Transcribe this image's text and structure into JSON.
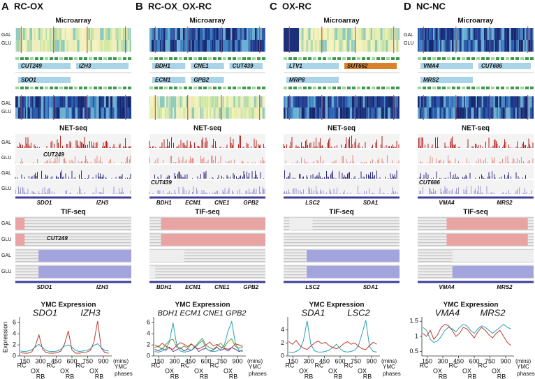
{
  "panels": [
    {
      "letter": "A",
      "title": "RC-OX",
      "microarray_title": "Microarray",
      "microarray_labels": [
        "GAL",
        "GLU",
        "GAL",
        "GLU"
      ],
      "annotation_genes": [
        "CUT249",
        "SDO1",
        "IZH3"
      ],
      "netseq_title": "NET-seq",
      "netseq_labels": [
        "GAL",
        "GLU",
        "GAL",
        "GLU"
      ],
      "netseq_annot": "CUT249",
      "netseq_genes": [
        "SDO1",
        "IZH3"
      ],
      "tifseq_title": "TIF-seq",
      "tifseq_labels": [
        "GAL",
        "GLU",
        "GAL",
        "GLU"
      ],
      "tifseq_annot": "CUT249",
      "tifseq_genes": [
        "SDO1",
        "IZH3"
      ]
    },
    {
      "letter": "B",
      "title": "RC-OX_OX-RC",
      "microarray_title": "Microarray",
      "annotation_genes": [
        "BDH1",
        "ECM1",
        "CNE1",
        "GPB2",
        "CUT439"
      ],
      "netseq_title": "NET-seq",
      "netseq_annot": "CUT439",
      "netseq_genes": [
        "BDH1",
        "ECM1",
        "CNE1",
        "GPB2"
      ],
      "tifseq_title": "TIF-seq",
      "tifseq_genes": [
        "BDH1",
        "ECM1",
        "CNE1",
        "GPB2"
      ]
    },
    {
      "letter": "C",
      "title": "OX-RC",
      "microarray_title": "Microarray",
      "annotation_genes": [
        "LTV1",
        "MRP8",
        "SUT662"
      ],
      "netseq_title": "NET-seq",
      "netseq_genes": [
        "LSC2",
        "SDA1"
      ],
      "tifseq_title": "TIF-seq",
      "tifseq_genes": [
        "LSC2",
        "SDA1"
      ]
    },
    {
      "letter": "D",
      "title": "NC-NC",
      "microarray_title": "Microarray",
      "microarray_labels": [
        "GAL",
        "GLU"
      ],
      "annotation_genes": [
        "VMA4",
        "MRS2",
        "CUT686"
      ],
      "netseq_title": "NET-seq",
      "netseq_annot": "CUT686",
      "netseq_genes": [
        "VMA4",
        "MRS2"
      ],
      "tifseq_title": "TIF-seq",
      "tifseq_genes": [
        "VMA4",
        "MRS2"
      ]
    }
  ],
  "chart_data": [
    {
      "type": "line",
      "title": "YMC Expression",
      "y_label": "Expression",
      "x_unit": "(mins)",
      "x": [
        110,
        145,
        180,
        215,
        250,
        285,
        320,
        355,
        390,
        425,
        460,
        495,
        530,
        565,
        600,
        635,
        670,
        705,
        740,
        775,
        810,
        845,
        880,
        915,
        950
      ],
      "xlim": [
        100,
        980
      ],
      "xticks": [
        150,
        300,
        450,
        600,
        750,
        900
      ],
      "ylim": [
        0,
        6.8
      ],
      "yticks": [
        0,
        2,
        4,
        6
      ],
      "series": [
        {
          "name": "SDO1",
          "color": "#c0392b",
          "values": [
            0.6,
            0.5,
            0.5,
            0.7,
            1.8,
            3.8,
            1.2,
            0.6,
            0.5,
            0.5,
            0.6,
            0.9,
            2.2,
            4.5,
            1.1,
            0.5,
            0.5,
            0.6,
            0.7,
            1.0,
            2.5,
            6.3,
            1.4,
            0.6,
            0.5
          ]
        },
        {
          "name": "IZH3",
          "color": "#2a9fb8",
          "values": [
            0.9,
            0.8,
            0.9,
            1.1,
            1.6,
            2.1,
            1.5,
            1.0,
            0.8,
            0.8,
            0.9,
            1.2,
            1.8,
            2.0,
            1.6,
            1.0,
            0.8,
            0.9,
            1.0,
            1.3,
            1.9,
            2.2,
            1.5,
            1.0,
            0.9
          ]
        }
      ],
      "phases": {
        "x": [
          120,
          250,
          300,
          400,
          530,
          580,
          680,
          810,
          860
        ],
        "labels": [
          "RC",
          "OX",
          "RB",
          "RC",
          "OX",
          "RB",
          "RC",
          "OX",
          "RB"
        ]
      },
      "phase_axis_label": [
        "YMC",
        "phases"
      ]
    },
    {
      "type": "line",
      "title": "YMC Expression",
      "x_unit": "(mins)",
      "x": [
        110,
        145,
        180,
        215,
        250,
        285,
        320,
        355,
        390,
        425,
        460,
        495,
        530,
        565,
        600,
        635,
        670,
        705,
        740,
        775,
        810,
        845,
        880,
        915,
        950
      ],
      "xlim": [
        100,
        980
      ],
      "xticks": [
        150,
        300,
        450,
        600,
        750,
        900
      ],
      "ylim": [
        0,
        6.8
      ],
      "yticks": [
        0,
        2,
        4,
        6
      ],
      "series": [
        {
          "name": "BDH1",
          "color": "#5b3c9e",
          "values": [
            1.2,
            0.9,
            1.4,
            1.0,
            1.6,
            0.8,
            1.1,
            1.5,
            0.9,
            1.3,
            1.0,
            1.7,
            0.8,
            1.2,
            1.4,
            0.9,
            1.1,
            1.6,
            1.0,
            1.3,
            0.9,
            1.5,
            1.2,
            0.8,
            1.1
          ]
        },
        {
          "name": "ECM1",
          "color": "#2a9fb8",
          "values": [
            0.8,
            0.7,
            0.9,
            1.2,
            2.5,
            6.0,
            2.0,
            0.9,
            0.7,
            0.8,
            1.0,
            1.5,
            2.2,
            2.8,
            1.4,
            0.9,
            0.8,
            0.9,
            1.2,
            2.0,
            4.5,
            6.2,
            2.3,
            1.0,
            0.8
          ]
        },
        {
          "name": "CNE1",
          "color": "#5aa02c",
          "values": [
            1.5,
            1.8,
            1.2,
            2.0,
            2.8,
            3.0,
            1.6,
            1.3,
            1.8,
            1.4,
            2.1,
            1.7,
            2.5,
            3.2,
            1.9,
            1.5,
            1.2,
            1.8,
            2.3,
            1.6,
            2.6,
            3.1,
            1.7,
            1.4,
            1.6
          ]
        },
        {
          "name": "GPB2",
          "color": "#c0392b",
          "values": [
            2.0,
            1.6,
            2.3,
            1.8,
            1.4,
            1.2,
            1.9,
            2.4,
            2.1,
            1.7,
            2.2,
            1.5,
            1.3,
            1.6,
            2.0,
            2.5,
            1.8,
            2.1,
            1.6,
            1.4,
            1.2,
            1.5,
            2.2,
            2.0,
            1.7
          ]
        }
      ],
      "phases": {
        "x": [
          120,
          250,
          300,
          400,
          530,
          580,
          680,
          810,
          860
        ],
        "labels": [
          "RC",
          "OX",
          "RB",
          "RC",
          "OX",
          "RB",
          "RC",
          "OX",
          "RB"
        ]
      },
      "phase_axis_label": [
        "YMC",
        "phases"
      ]
    },
    {
      "type": "line",
      "title": "YMC Expression",
      "x_unit": "(mins)",
      "x": [
        110,
        145,
        180,
        215,
        250,
        285,
        320,
        355,
        390,
        425,
        460,
        495,
        530,
        565,
        600,
        635,
        670,
        705,
        740,
        775,
        810,
        845,
        880,
        915,
        950
      ],
      "xlim": [
        100,
        980
      ],
      "xticks": [
        150,
        300,
        450,
        600,
        750,
        900
      ],
      "ylim": [
        0,
        5.8
      ],
      "yticks": [
        0,
        2,
        4
      ],
      "series": [
        {
          "name": "SDA1",
          "color": "#2a9fb8",
          "values": [
            0.6,
            0.5,
            0.7,
            1.0,
            2.4,
            5.4,
            1.8,
            0.8,
            0.6,
            0.6,
            0.7,
            0.9,
            1.3,
            1.8,
            1.1,
            0.7,
            0.6,
            0.7,
            0.9,
            1.6,
            3.5,
            5.5,
            1.5,
            0.7,
            0.6
          ]
        },
        {
          "name": "LSC2",
          "color": "#c0392b",
          "values": [
            2.2,
            1.8,
            2.4,
            1.6,
            1.2,
            1.0,
            1.5,
            2.0,
            2.3,
            1.9,
            2.1,
            1.6,
            1.3,
            1.1,
            1.4,
            1.9,
            2.2,
            1.8,
            2.0,
            1.5,
            1.1,
            1.0,
            1.6,
            2.1,
            1.8
          ]
        }
      ],
      "phases": {
        "x": [
          120,
          250,
          300,
          400,
          530,
          580,
          680,
          810,
          860
        ],
        "labels": [
          "RC",
          "OX",
          "RB",
          "RC",
          "OX",
          "RB",
          "RC",
          "OX",
          "RB"
        ]
      },
      "phase_axis_label": [
        "YMC",
        "phases"
      ]
    },
    {
      "type": "line",
      "title": "YMC Expression",
      "x_unit": "(mins)",
      "x": [
        110,
        145,
        180,
        215,
        250,
        285,
        320,
        355,
        390,
        425,
        460,
        495,
        530,
        565,
        600,
        635,
        670,
        705,
        740,
        775,
        810,
        845,
        880,
        915,
        950
      ],
      "xlim": [
        100,
        980
      ],
      "xticks": [
        150,
        300,
        450,
        600,
        750,
        900
      ],
      "ylim": [
        0.35,
        1.6
      ],
      "yticks": [
        0.5,
        1,
        1.5
      ],
      "series": [
        {
          "name": "VMA4",
          "color": "#c0392b",
          "values": [
            1.1,
            1.0,
            1.2,
            0.9,
            1.05,
            1.3,
            1.4,
            1.35,
            1.2,
            1.0,
            1.1,
            1.3,
            1.25,
            1.1,
            0.95,
            1.15,
            1.3,
            1.2,
            1.05,
            0.95,
            1.1,
            1.2,
            1.0,
            0.8,
            0.7
          ]
        },
        {
          "name": "MRS2",
          "color": "#2a9fb8",
          "values": [
            1.3,
            1.2,
            0.9,
            0.8,
            0.85,
            1.0,
            1.2,
            1.3,
            1.25,
            1.15,
            1.3,
            1.4,
            1.35,
            1.2,
            1.1,
            1.25,
            1.35,
            1.3,
            1.2,
            1.1,
            1.2,
            1.3,
            1.4,
            1.3,
            1.25
          ]
        }
      ],
      "phases": {
        "x": [
          120,
          250,
          300,
          400,
          530,
          580,
          680,
          810,
          860
        ],
        "labels": [
          "RC",
          "OX",
          "RB",
          "RC",
          "OX",
          "RB",
          "RC",
          "OX",
          "RB"
        ]
      },
      "phase_axis_label": [
        "YMC",
        "phases"
      ]
    }
  ]
}
